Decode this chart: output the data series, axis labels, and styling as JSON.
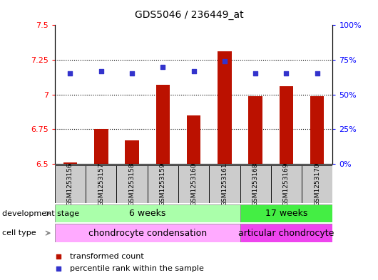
{
  "title": "GDS5046 / 236449_at",
  "samples": [
    "GSM1253156",
    "GSM1253157",
    "GSM1253158",
    "GSM1253159",
    "GSM1253160",
    "GSM1253161",
    "GSM1253168",
    "GSM1253169",
    "GSM1253170"
  ],
  "bar_values": [
    6.51,
    6.75,
    6.67,
    7.07,
    6.85,
    7.31,
    6.99,
    7.06,
    6.99
  ],
  "bar_base": 6.5,
  "percentile_values": [
    65,
    67,
    65,
    70,
    67,
    74,
    65,
    65,
    65
  ],
  "ylim_left": [
    6.5,
    7.5
  ],
  "ylim_right": [
    0,
    100
  ],
  "yticks_left": [
    6.5,
    6.75,
    7.0,
    7.25,
    7.5
  ],
  "ytick_labels_left": [
    "6.5",
    "6.75",
    "7",
    "7.25",
    "7.5"
  ],
  "yticks_right": [
    0,
    25,
    50,
    75,
    100
  ],
  "ytick_labels_right": [
    "0%",
    "25%",
    "50%",
    "75%",
    "100%"
  ],
  "bar_color": "#bb1100",
  "scatter_color": "#3333cc",
  "dev_stage_groups": [
    {
      "label": "6 weeks",
      "start": 0,
      "end": 5,
      "color": "#aaffaa"
    },
    {
      "label": "17 weeks",
      "start": 6,
      "end": 8,
      "color": "#44ee44"
    }
  ],
  "cell_type_groups": [
    {
      "label": "chondrocyte condensation",
      "start": 0,
      "end": 5,
      "color": "#ffaaff"
    },
    {
      "label": "articular chondrocyte",
      "start": 6,
      "end": 8,
      "color": "#ee44ee"
    }
  ],
  "dev_stage_label": "development stage",
  "cell_type_label": "cell type",
  "legend_bar_label": "transformed count",
  "legend_scatter_label": "percentile rank within the sample",
  "sample_box_color": "#cccccc",
  "title_fontsize": 10,
  "tick_fontsize": 8,
  "label_fontsize": 8,
  "row_label_fontsize": 8,
  "group_label_fontsize": 9
}
